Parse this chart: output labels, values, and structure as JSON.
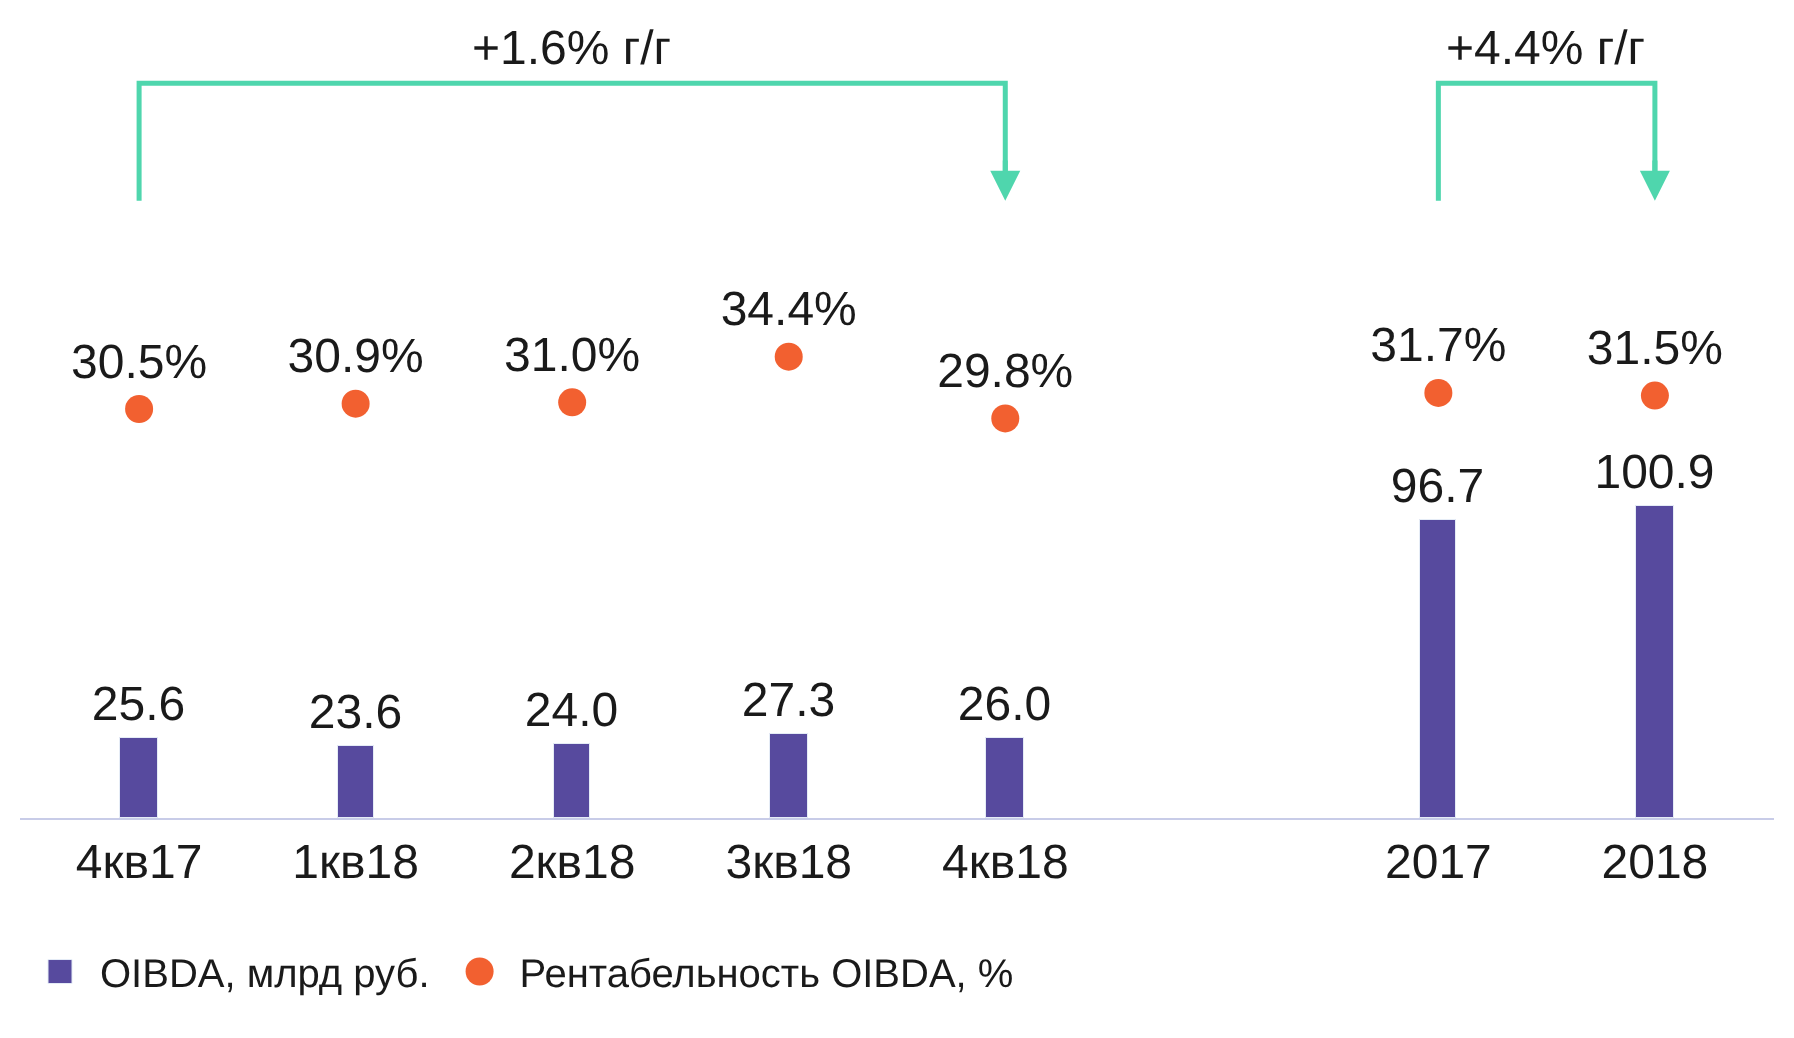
{
  "chart_data": {
    "type": "bar",
    "categories": [
      "4кв17",
      "1кв18",
      "2кв18",
      "3кв18",
      "4кв18",
      null,
      "2017",
      "2018"
    ],
    "series": [
      {
        "name": "OIBDA, млрд руб.",
        "color": "#574a9e",
        "values": [
          25.6,
          23.6,
          24.0,
          27.3,
          26.0,
          null,
          96.7,
          100.9
        ],
        "value_labels": [
          "25.6",
          "23.6",
          "24.0",
          "27.3",
          "26.0",
          null,
          "96.7",
          "100.9"
        ]
      },
      {
        "name": "Рентабельность OIBDA, %",
        "type": "scatter",
        "axis": "y2",
        "color": "#f26030",
        "marker": "circle",
        "values": [
          30.5,
          30.9,
          31.0,
          34.4,
          29.8,
          null,
          31.7,
          31.5
        ],
        "value_labels": [
          "30.5%",
          "30.9%",
          "31.0%",
          "34.4%",
          "29.8%",
          null,
          "31.7%",
          "31.5%"
        ]
      }
    ],
    "ylim": [
      0,
      265
    ],
    "y2lim": [
      0,
      61
    ],
    "tick_labels": "x",
    "legend": "bottom left",
    "annotations": [
      "+1.6% г/г",
      "+4.4% г/г"
    ]
  }
}
